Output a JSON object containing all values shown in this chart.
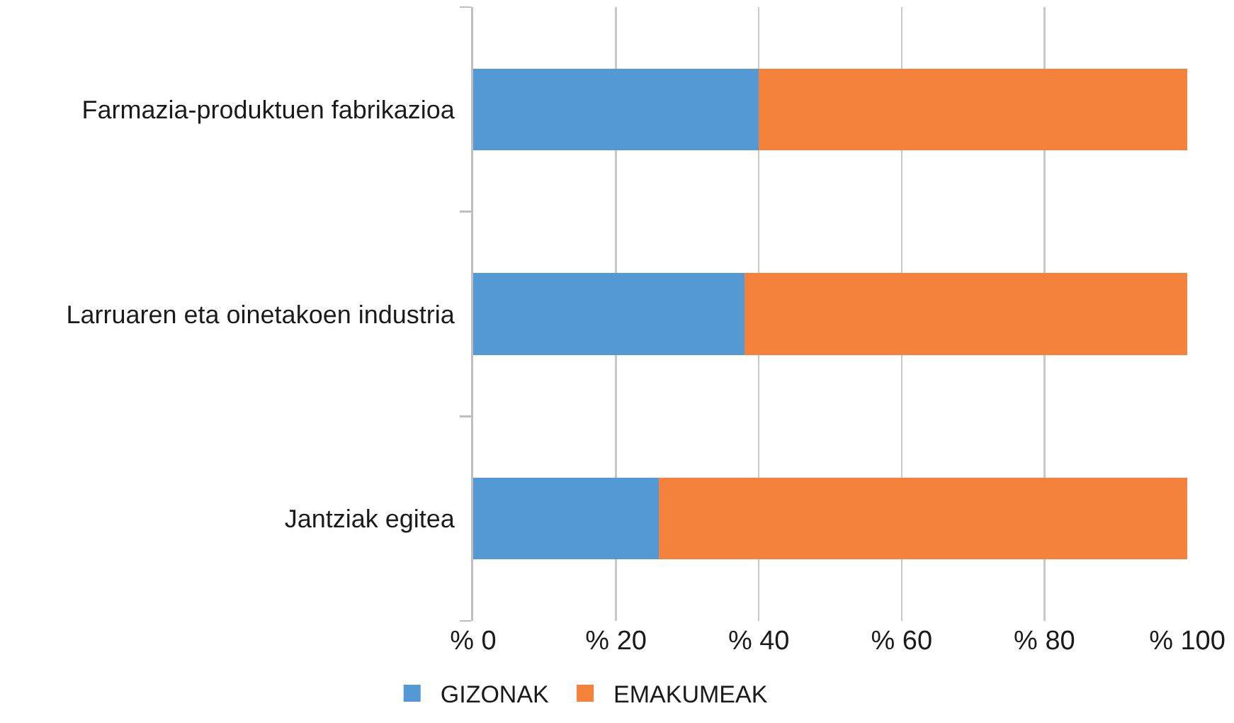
{
  "chart_data": {
    "type": "bar",
    "orientation": "horizontal",
    "stacked": true,
    "categories": [
      "Farmazia-produktuen fabrikazioa",
      "Larruaren eta oinetakoen industria",
      "Jantziak egitea"
    ],
    "series": [
      {
        "name": "GIZONAK",
        "color": "#5599d4",
        "values": [
          40,
          38,
          26
        ]
      },
      {
        "name": "EMAKUMEAK",
        "color": "#f4813c",
        "values": [
          60,
          62,
          74
        ]
      }
    ],
    "xlim": [
      0,
      100
    ],
    "xticks": [
      {
        "value": 0,
        "label": "% 0"
      },
      {
        "value": 20,
        "label": "% 20"
      },
      {
        "value": 40,
        "label": "% 40"
      },
      {
        "value": 60,
        "label": "% 60"
      },
      {
        "value": 80,
        "label": "% 80"
      },
      {
        "value": 100,
        "label": "% 100"
      }
    ],
    "grid": "x",
    "legend": "bottom"
  }
}
